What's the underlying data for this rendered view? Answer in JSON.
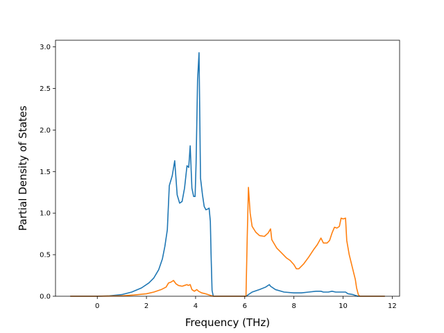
{
  "chart_data": {
    "type": "line",
    "title": "",
    "xlabel": "Frequency (THz)",
    "ylabel": "Partial Density of States",
    "xlim": [
      -1.7,
      12.3
    ],
    "ylim": [
      0,
      3.08
    ],
    "x_ticks": [
      0,
      2,
      4,
      6,
      8,
      10,
      12
    ],
    "y_ticks": [
      0.0,
      0.5,
      1.0,
      1.5,
      2.0,
      2.5,
      3.0
    ],
    "x_tick_labels": [
      "0",
      "2",
      "4",
      "6",
      "8",
      "10",
      "12"
    ],
    "y_tick_labels": [
      "0.0",
      "0.5",
      "1.0",
      "1.5",
      "2.0",
      "2.5",
      "3.0"
    ],
    "grid": false,
    "legend": "none",
    "series": [
      {
        "color": "#1f77b4",
        "points": [
          [
            -1.1,
            0.0
          ],
          [
            0.0,
            0.0
          ],
          [
            0.5,
            0.005
          ],
          [
            1.0,
            0.02
          ],
          [
            1.4,
            0.05
          ],
          [
            1.8,
            0.1
          ],
          [
            2.1,
            0.16
          ],
          [
            2.3,
            0.22
          ],
          [
            2.5,
            0.32
          ],
          [
            2.65,
            0.45
          ],
          [
            2.75,
            0.6
          ],
          [
            2.85,
            0.8
          ],
          [
            2.93,
            1.33
          ],
          [
            3.05,
            1.45
          ],
          [
            3.15,
            1.63
          ],
          [
            3.25,
            1.22
          ],
          [
            3.35,
            1.12
          ],
          [
            3.45,
            1.14
          ],
          [
            3.55,
            1.3
          ],
          [
            3.65,
            1.57
          ],
          [
            3.72,
            1.55
          ],
          [
            3.78,
            1.81
          ],
          [
            3.85,
            1.3
          ],
          [
            3.92,
            1.2
          ],
          [
            3.98,
            1.2
          ],
          [
            4.02,
            1.6
          ],
          [
            4.08,
            2.6
          ],
          [
            4.14,
            2.93
          ],
          [
            4.2,
            1.42
          ],
          [
            4.28,
            1.22
          ],
          [
            4.35,
            1.08
          ],
          [
            4.42,
            1.04
          ],
          [
            4.5,
            1.05
          ],
          [
            4.55,
            1.06
          ],
          [
            4.6,
            0.9
          ],
          [
            4.63,
            0.5
          ],
          [
            4.67,
            0.07
          ],
          [
            4.72,
            0.0
          ],
          [
            5.5,
            0.0
          ],
          [
            6.05,
            0.0
          ],
          [
            6.15,
            0.02
          ],
          [
            6.3,
            0.05
          ],
          [
            6.6,
            0.08
          ],
          [
            6.85,
            0.11
          ],
          [
            7.0,
            0.14
          ],
          [
            7.05,
            0.12
          ],
          [
            7.25,
            0.08
          ],
          [
            7.6,
            0.05
          ],
          [
            8.0,
            0.04
          ],
          [
            8.3,
            0.04
          ],
          [
            8.6,
            0.05
          ],
          [
            8.9,
            0.06
          ],
          [
            9.1,
            0.06
          ],
          [
            9.2,
            0.05
          ],
          [
            9.4,
            0.05
          ],
          [
            9.55,
            0.06
          ],
          [
            9.7,
            0.05
          ],
          [
            9.9,
            0.05
          ],
          [
            10.1,
            0.05
          ],
          [
            10.2,
            0.03
          ],
          [
            10.4,
            0.02
          ],
          [
            10.6,
            0.0
          ],
          [
            11.7,
            0.0
          ]
        ]
      },
      {
        "color": "#ff7f0e",
        "points": [
          [
            -1.1,
            0.0
          ],
          [
            0.0,
            0.0
          ],
          [
            1.0,
            0.005
          ],
          [
            1.5,
            0.015
          ],
          [
            2.0,
            0.03
          ],
          [
            2.3,
            0.05
          ],
          [
            2.6,
            0.08
          ],
          [
            2.8,
            0.11
          ],
          [
            2.9,
            0.16
          ],
          [
            3.0,
            0.17
          ],
          [
            3.1,
            0.19
          ],
          [
            3.2,
            0.15
          ],
          [
            3.3,
            0.13
          ],
          [
            3.45,
            0.12
          ],
          [
            3.55,
            0.13
          ],
          [
            3.65,
            0.14
          ],
          [
            3.7,
            0.13
          ],
          [
            3.78,
            0.14
          ],
          [
            3.85,
            0.08
          ],
          [
            3.95,
            0.06
          ],
          [
            4.05,
            0.08
          ],
          [
            4.12,
            0.06
          ],
          [
            4.25,
            0.04
          ],
          [
            4.4,
            0.03
          ],
          [
            4.6,
            0.01
          ],
          [
            4.72,
            0.0
          ],
          [
            5.5,
            0.0
          ],
          [
            6.05,
            0.0
          ],
          [
            6.1,
            0.7
          ],
          [
            6.15,
            1.31
          ],
          [
            6.22,
            1.0
          ],
          [
            6.3,
            0.84
          ],
          [
            6.45,
            0.77
          ],
          [
            6.6,
            0.73
          ],
          [
            6.8,
            0.72
          ],
          [
            6.95,
            0.76
          ],
          [
            7.05,
            0.81
          ],
          [
            7.1,
            0.68
          ],
          [
            7.3,
            0.58
          ],
          [
            7.5,
            0.52
          ],
          [
            7.7,
            0.46
          ],
          [
            7.85,
            0.43
          ],
          [
            8.0,
            0.38
          ],
          [
            8.1,
            0.33
          ],
          [
            8.2,
            0.33
          ],
          [
            8.4,
            0.39
          ],
          [
            8.6,
            0.47
          ],
          [
            8.8,
            0.56
          ],
          [
            8.95,
            0.62
          ],
          [
            9.1,
            0.7
          ],
          [
            9.2,
            0.64
          ],
          [
            9.35,
            0.64
          ],
          [
            9.45,
            0.67
          ],
          [
            9.55,
            0.76
          ],
          [
            9.65,
            0.83
          ],
          [
            9.75,
            0.82
          ],
          [
            9.85,
            0.84
          ],
          [
            9.92,
            0.94
          ],
          [
            10.0,
            0.93
          ],
          [
            10.1,
            0.94
          ],
          [
            10.15,
            0.67
          ],
          [
            10.25,
            0.5
          ],
          [
            10.4,
            0.32
          ],
          [
            10.5,
            0.2
          ],
          [
            10.55,
            0.1
          ],
          [
            10.62,
            0.02
          ],
          [
            10.68,
            0.0
          ],
          [
            11.7,
            0.0
          ]
        ]
      }
    ]
  }
}
